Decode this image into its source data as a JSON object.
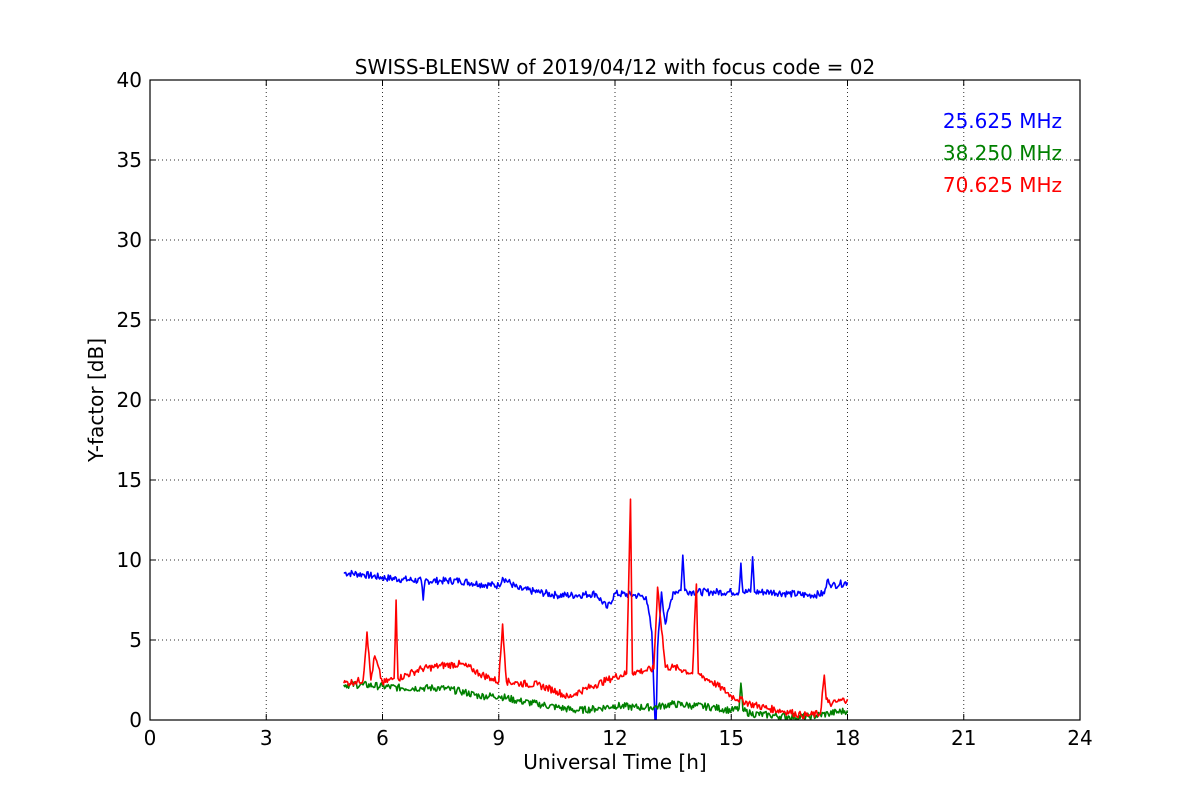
{
  "chart_data": {
    "type": "line",
    "title": "SWISS-BLENSW of 2019/04/12 with focus code = 02",
    "xlabel": "Universal Time [h]",
    "ylabel": "Y-factor [dB]",
    "xlim": [
      0,
      24
    ],
    "ylim": [
      0,
      40
    ],
    "xticks": [
      0,
      3,
      6,
      9,
      12,
      15,
      18,
      21,
      24
    ],
    "yticks": [
      0,
      5,
      10,
      15,
      20,
      25,
      30,
      35,
      40
    ],
    "grid": true,
    "legend": "top-right",
    "series": [
      {
        "name": "25.625 MHz",
        "color": "#0000ff",
        "x": [
          5.0,
          5.5,
          6.0,
          6.5,
          7.0,
          7.05,
          7.1,
          7.5,
          8.0,
          8.5,
          9.0,
          9.1,
          9.5,
          10.0,
          10.5,
          11.0,
          11.5,
          11.8,
          12.0,
          12.5,
          12.8,
          12.95,
          13.0,
          13.05,
          13.1,
          13.2,
          13.3,
          13.4,
          13.5,
          13.7,
          13.75,
          13.8,
          14.0,
          14.5,
          15.0,
          15.2,
          15.25,
          15.3,
          15.5,
          15.55,
          15.6,
          16.0,
          16.5,
          17.0,
          17.4,
          17.5,
          17.6,
          17.8,
          18.0
        ],
        "y": [
          9.2,
          9.1,
          8.9,
          8.8,
          8.7,
          7.5,
          8.7,
          8.7,
          8.7,
          8.5,
          8.4,
          8.9,
          8.2,
          8.0,
          7.8,
          7.8,
          7.9,
          7.0,
          7.9,
          7.8,
          7.7,
          5.5,
          2.0,
          -1.0,
          4.5,
          8.0,
          6.0,
          7.0,
          8.0,
          8.1,
          10.3,
          8.1,
          8.0,
          8.0,
          8.0,
          8.0,
          9.8,
          8.0,
          8.0,
          10.2,
          8.0,
          8.0,
          7.9,
          7.8,
          7.9,
          8.8,
          8.4,
          8.5,
          8.6
        ]
      },
      {
        "name": "38.250 MHz",
        "color": "#008000",
        "x": [
          5.0,
          5.5,
          6.0,
          6.5,
          7.0,
          7.5,
          8.0,
          8.5,
          9.0,
          9.5,
          10.0,
          10.5,
          11.0,
          11.5,
          12.0,
          12.5,
          13.0,
          13.5,
          14.0,
          14.5,
          15.0,
          15.2,
          15.25,
          15.3,
          15.5,
          16.0,
          16.5,
          17.0,
          17.5,
          18.0
        ],
        "y": [
          2.2,
          2.2,
          2.1,
          2.0,
          2.0,
          2.0,
          1.8,
          1.5,
          1.5,
          1.2,
          1.0,
          0.8,
          0.6,
          0.7,
          0.9,
          0.8,
          0.8,
          1.0,
          0.9,
          0.8,
          0.6,
          0.7,
          2.3,
          0.6,
          0.4,
          0.3,
          0.2,
          0.2,
          0.4,
          0.6
        ]
      },
      {
        "name": "70.625 MHz",
        "color": "#ff0000",
        "x": [
          5.0,
          5.3,
          5.5,
          5.6,
          5.7,
          5.8,
          6.0,
          6.3,
          6.35,
          6.4,
          6.8,
          7.0,
          7.3,
          7.5,
          8.0,
          8.3,
          8.5,
          8.8,
          9.0,
          9.1,
          9.2,
          9.5,
          10.0,
          10.5,
          10.8,
          11.0,
          11.3,
          11.5,
          11.8,
          12.0,
          12.3,
          12.4,
          12.45,
          12.5,
          12.8,
          13.0,
          13.1,
          13.3,
          13.5,
          13.8,
          14.0,
          14.1,
          14.15,
          14.2,
          14.5,
          14.8,
          15.0,
          15.5,
          16.0,
          16.5,
          16.8,
          17.0,
          17.3,
          17.4,
          17.45,
          17.5,
          17.6,
          17.8,
          18.0
        ],
        "y": [
          2.3,
          2.4,
          2.5,
          5.5,
          2.5,
          4.0,
          2.3,
          2.6,
          7.5,
          2.6,
          3.0,
          3.2,
          3.3,
          3.4,
          3.5,
          3.2,
          2.9,
          2.6,
          2.4,
          6.0,
          2.4,
          2.3,
          2.2,
          1.8,
          1.4,
          1.7,
          2.0,
          2.2,
          2.5,
          2.7,
          2.9,
          13.8,
          2.9,
          3.0,
          3.1,
          3.2,
          8.3,
          3.3,
          3.3,
          3.1,
          2.9,
          8.5,
          2.9,
          2.8,
          2.4,
          1.9,
          1.5,
          1.0,
          0.7,
          0.5,
          0.3,
          0.3,
          0.4,
          2.8,
          1.3,
          1.1,
          1.0,
          1.2,
          1.3
        ]
      }
    ]
  }
}
